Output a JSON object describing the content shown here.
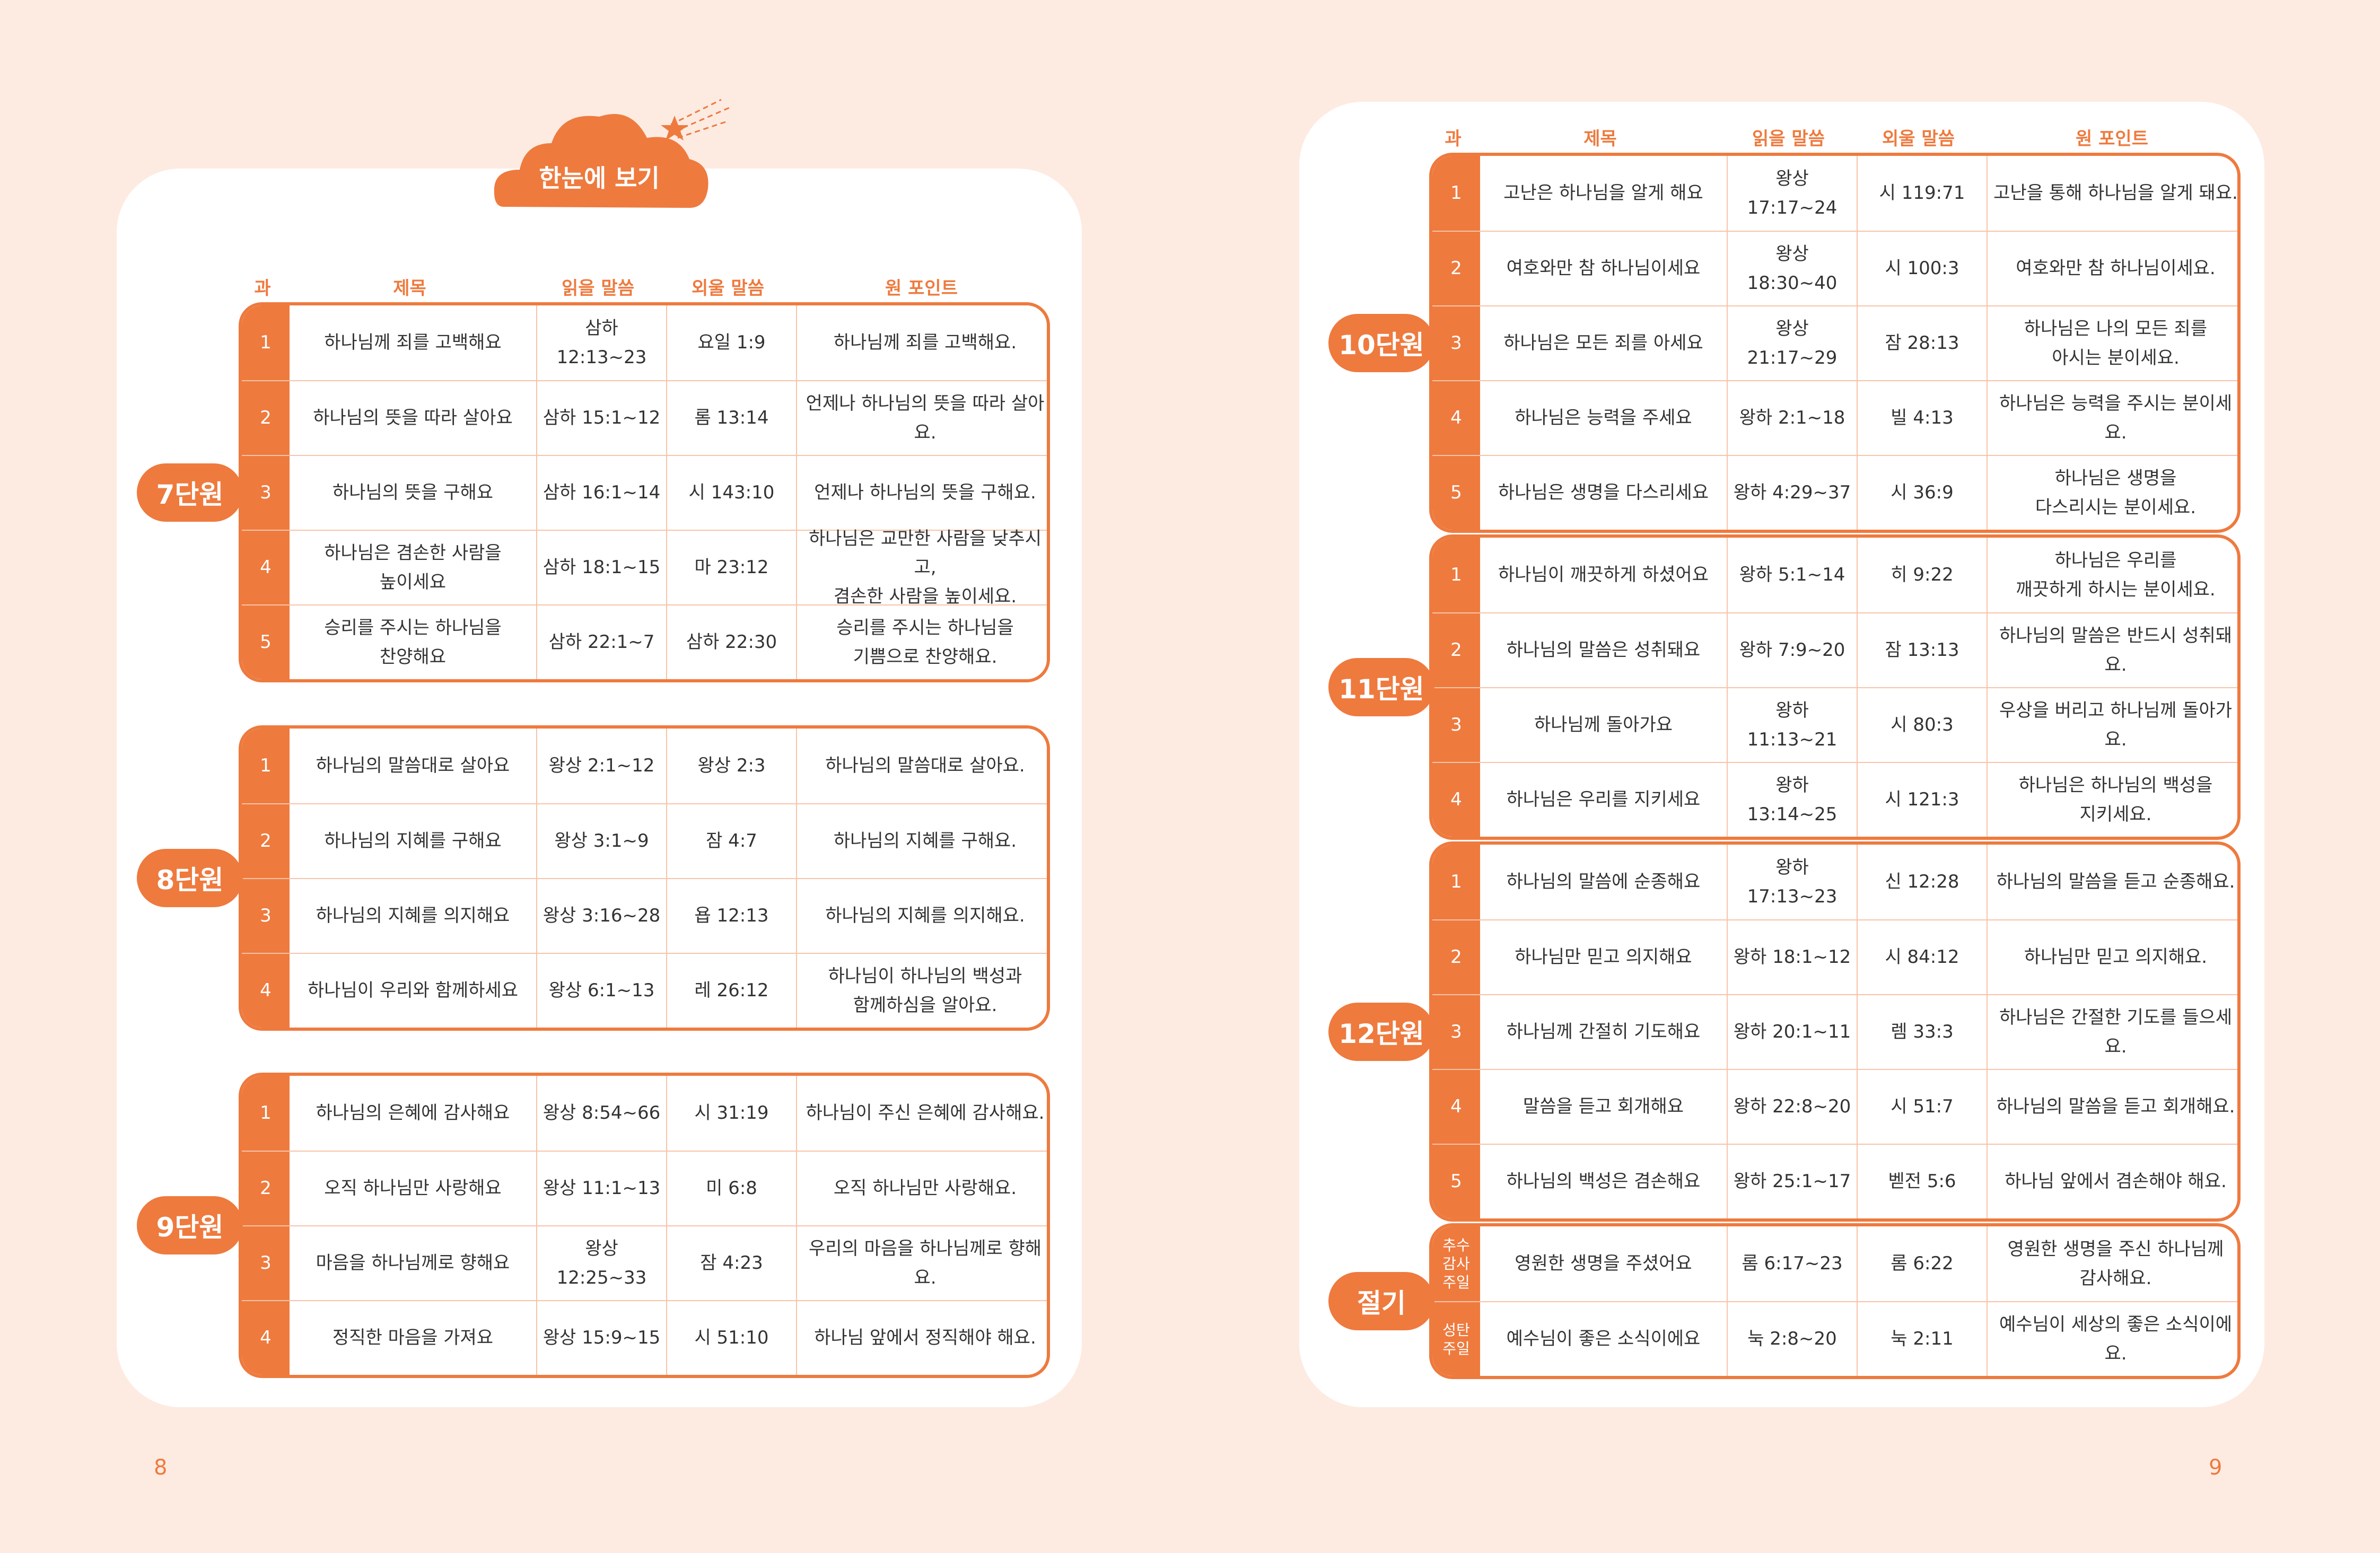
{
  "colors": {
    "accent": "#ee7a3e",
    "background": "#fdebe1",
    "grid": "#f7c4a8"
  },
  "badge": {
    "title": "한눈에 보기",
    "icon": "cloud-star-icon"
  },
  "headers": {
    "lesson": "과",
    "title": "제목",
    "reading": "읽을 말씀",
    "memory": "외울 말씀",
    "point": "원 포인트"
  },
  "left": {
    "units": [
      {
        "label": "7단원",
        "rows": [
          {
            "n": "1",
            "title": "하나님께 죄를 고백해요",
            "reading": "삼하 12:13~23",
            "memory": "요일 1:9",
            "point": "하나님께 죄를 고백해요."
          },
          {
            "n": "2",
            "title": "하나님의 뜻을 따라 살아요",
            "reading": "삼하 15:1~12",
            "memory": "롬 13:14",
            "point": "언제나 하나님의 뜻을 따라 살아요."
          },
          {
            "n": "3",
            "title": "하나님의 뜻을 구해요",
            "reading": "삼하 16:1~14",
            "memory": "시 143:10",
            "point": "언제나 하나님의 뜻을 구해요."
          },
          {
            "n": "4",
            "title": "하나님은 겸손한 사람을\n높이세요",
            "reading": "삼하 18:1~15",
            "memory": "마 23:12",
            "point": "하나님은 교만한 사람을 낮추시고,\n겸손한 사람을 높이세요."
          },
          {
            "n": "5",
            "title": "승리를 주시는 하나님을\n찬양해요",
            "reading": "삼하 22:1~7",
            "memory": "삼하 22:30",
            "point": "승리를 주시는 하나님을\n기쁨으로 찬양해요."
          }
        ]
      },
      {
        "label": "8단원",
        "rows": [
          {
            "n": "1",
            "title": "하나님의 말씀대로 살아요",
            "reading": "왕상 2:1~12",
            "memory": "왕상 2:3",
            "point": "하나님의 말씀대로 살아요."
          },
          {
            "n": "2",
            "title": "하나님의 지혜를 구해요",
            "reading": "왕상 3:1~9",
            "memory": "잠 4:7",
            "point": "하나님의 지혜를 구해요."
          },
          {
            "n": "3",
            "title": "하나님의 지혜를 의지해요",
            "reading": "왕상 3:16~28",
            "memory": "욥 12:13",
            "point": "하나님의 지혜를 의지해요."
          },
          {
            "n": "4",
            "title": "하나님이 우리와 함께하세요",
            "reading": "왕상 6:1~13",
            "memory": "레 26:12",
            "point": "하나님이 하나님의 백성과\n함께하심을 알아요."
          }
        ]
      },
      {
        "label": "9단원",
        "rows": [
          {
            "n": "1",
            "title": "하나님의 은혜에 감사해요",
            "reading": "왕상 8:54~66",
            "memory": "시 31:19",
            "point": "하나님이 주신 은혜에 감사해요."
          },
          {
            "n": "2",
            "title": "오직 하나님만 사랑해요",
            "reading": "왕상 11:1~13",
            "memory": "미 6:8",
            "point": "오직 하나님만 사랑해요."
          },
          {
            "n": "3",
            "title": "마음을 하나님께로 향해요",
            "reading": "왕상 12:25~33",
            "memory": "잠 4:23",
            "point": "우리의 마음을 하나님께로 향해요."
          },
          {
            "n": "4",
            "title": "정직한 마음을 가져요",
            "reading": "왕상 15:9~15",
            "memory": "시 51:10",
            "point": "하나님 앞에서 정직해야 해요."
          }
        ]
      }
    ],
    "page_number": "8"
  },
  "right": {
    "units": [
      {
        "label": "10단원",
        "rows": [
          {
            "n": "1",
            "title": "고난은 하나님을 알게 해요",
            "reading": "왕상 17:17~24",
            "memory": "시 119:71",
            "point": "고난을 통해 하나님을 알게 돼요."
          },
          {
            "n": "2",
            "title": "여호와만 참 하나님이세요",
            "reading": "왕상 18:30~40",
            "memory": "시 100:3",
            "point": "여호와만 참 하나님이세요."
          },
          {
            "n": "3",
            "title": "하나님은 모든 죄를 아세요",
            "reading": "왕상 21:17~29",
            "memory": "잠 28:13",
            "point": "하나님은 나의 모든 죄를\n아시는 분이세요."
          },
          {
            "n": "4",
            "title": "하나님은 능력을 주세요",
            "reading": "왕하 2:1~18",
            "memory": "빌 4:13",
            "point": "하나님은 능력을 주시는 분이세요."
          },
          {
            "n": "5",
            "title": "하나님은 생명을 다스리세요",
            "reading": "왕하 4:29~37",
            "memory": "시 36:9",
            "point": "하나님은 생명을\n다스리시는 분이세요."
          }
        ]
      },
      {
        "label": "11단원",
        "rows": [
          {
            "n": "1",
            "title": "하나님이 깨끗하게 하셨어요",
            "reading": "왕하 5:1~14",
            "memory": "히 9:22",
            "point": "하나님은 우리를\n깨끗하게 하시는 분이세요."
          },
          {
            "n": "2",
            "title": "하나님의 말씀은 성취돼요",
            "reading": "왕하 7:9~20",
            "memory": "잠 13:13",
            "point": "하나님의 말씀은 반드시 성취돼요."
          },
          {
            "n": "3",
            "title": "하나님께 돌아가요",
            "reading": "왕하 11:13~21",
            "memory": "시 80:3",
            "point": "우상을 버리고 하나님께 돌아가요."
          },
          {
            "n": "4",
            "title": "하나님은 우리를 지키세요",
            "reading": "왕하 13:14~25",
            "memory": "시 121:3",
            "point": "하나님은 하나님의 백성을\n지키세요."
          }
        ]
      },
      {
        "label": "12단원",
        "rows": [
          {
            "n": "1",
            "title": "하나님의 말씀에 순종해요",
            "reading": "왕하 17:13~23",
            "memory": "신 12:28",
            "point": "하나님의 말씀을 듣고 순종해요."
          },
          {
            "n": "2",
            "title": "하나님만 믿고 의지해요",
            "reading": "왕하 18:1~12",
            "memory": "시 84:12",
            "point": "하나님만 믿고 의지해요."
          },
          {
            "n": "3",
            "title": "하나님께 간절히 기도해요",
            "reading": "왕하 20:1~11",
            "memory": "렘 33:3",
            "point": "하나님은 간절한 기도를 들으세요."
          },
          {
            "n": "4",
            "title": "말씀을 듣고 회개해요",
            "reading": "왕하 22:8~20",
            "memory": "시 51:7",
            "point": "하나님의 말씀을 듣고 회개해요."
          },
          {
            "n": "5",
            "title": "하나님의 백성은 겸손해요",
            "reading": "왕하 25:1~17",
            "memory": "벧전 5:6",
            "point": "하나님 앞에서 겸손해야 해요."
          }
        ]
      },
      {
        "label": "절기",
        "rows": [
          {
            "n": "추수\n감사\n주일",
            "title": "영원한 생명을 주셨어요",
            "reading": "롬 6:17~23",
            "memory": "롬 6:22",
            "point": "영원한 생명을 주신 하나님께\n감사해요."
          },
          {
            "n": "성탄\n주일",
            "title": "예수님이 좋은 소식이에요",
            "reading": "눅 2:8~20",
            "memory": "눅 2:11",
            "point": "예수님이 세상의 좋은 소식이에요."
          }
        ]
      }
    ],
    "page_number": "9"
  }
}
